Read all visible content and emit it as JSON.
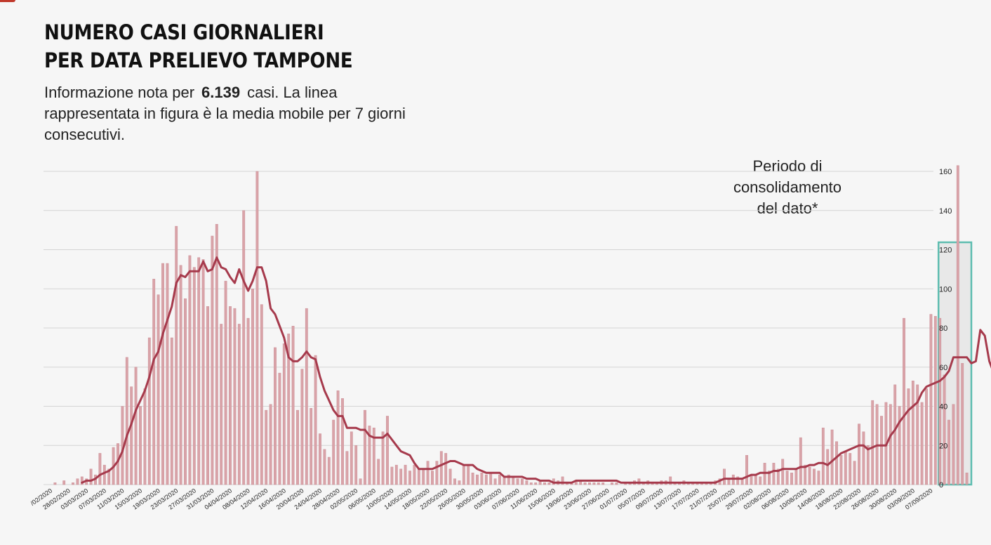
{
  "header": {
    "title_line1": "NUMERO CASI GIORNALIERI",
    "title_line2": "PER DATA PRELIEVO TAMPONE",
    "subtitle_before": "Informazione nota per",
    "subtitle_number": "6.139",
    "subtitle_after": "casi. La linea rappresentata in figura è la media mobile per 7 giorni consecutivi."
  },
  "annotation": {
    "line1": "Periodo di",
    "line2": "consolidamento",
    "line3": "del dato*"
  },
  "colors": {
    "bar": "#d9a3a8",
    "bar_edge": "#c98891",
    "line": "#a63a4c",
    "grid": "#d4d4d4",
    "highlight_border": "#5dbdb0",
    "highlight_fill": "#e8e8e8"
  },
  "chart_data": {
    "type": "bar",
    "start_date": "2020-02-24",
    "end_date": "2020-09-09",
    "ylim": [
      0,
      160
    ],
    "yticks": [
      0,
      20,
      40,
      60,
      80,
      100,
      120,
      140,
      160
    ],
    "y_axis_position": "right",
    "grid": true,
    "xtick_labels": [
      "/02/2020",
      "28/02/2020",
      "03/03/2020",
      "07/03/2020",
      "11/03/2020",
      "15/03/2020",
      "19/03/2020",
      "23/03/2020",
      "27/03/2020",
      "31/03/2020",
      "04/04/2020",
      "08/04/2020",
      "12/04/2020",
      "16/04/2020",
      "20/04/2020",
      "24/04/2020",
      "28/04/2020",
      "02/05/2020",
      "06/05/2020",
      "10/05/2020",
      "14/05/2020",
      "18/05/2020",
      "22/05/2020",
      "26/05/2020",
      "30/05/2020",
      "03/06/2020",
      "07/06/2020",
      "11/06/2020",
      "15/06/2020",
      "19/06/2020",
      "23/06/2020",
      "27/06/2020",
      "01/07/2020",
      "05/07/2020",
      "09/07/2020",
      "13/07/2020",
      "17/07/2020",
      "21/07/2020",
      "25/07/2020",
      "29/07/2020",
      "02/08/2020",
      "06/08/2020",
      "10/08/2020",
      "14/08/2020",
      "18/08/2020",
      "22/08/2020",
      "26/08/2020",
      "30/08/2020",
      "03/09/2020",
      "07/09/2020"
    ],
    "consolidation_period": [
      "2020-09-03",
      "2020-09-09"
    ],
    "series": [
      {
        "type": "bar",
        "values": [
          0,
          1,
          0,
          2,
          0,
          1,
          3,
          4,
          3,
          8,
          5,
          16,
          10,
          8,
          19,
          21,
          40,
          65,
          50,
          60,
          40,
          49,
          75,
          105,
          97,
          113,
          113,
          75,
          132,
          112,
          95,
          117,
          111,
          116,
          115,
          91,
          127,
          133,
          82,
          104,
          91,
          90,
          82,
          140,
          85,
          100,
          160,
          92,
          38,
          41,
          70,
          57,
          72,
          77,
          81,
          38,
          59,
          90,
          39,
          66,
          26,
          18,
          14,
          33,
          48,
          44,
          17,
          27,
          20,
          3,
          38,
          30,
          29,
          13,
          27,
          35,
          9,
          10,
          8,
          10,
          7,
          10,
          8,
          8,
          12,
          7,
          12,
          17,
          16,
          8,
          3,
          2,
          10,
          10,
          6,
          5,
          6,
          5,
          6,
          3,
          5,
          4,
          5,
          4,
          3,
          3,
          2,
          1,
          1,
          2,
          1,
          1,
          3,
          2,
          4,
          1,
          1,
          2,
          2,
          1,
          1,
          1,
          1,
          1,
          0,
          1,
          1,
          0,
          1,
          1,
          2,
          3,
          1,
          2,
          1,
          1,
          2,
          2,
          4,
          1,
          1,
          2,
          1,
          1,
          1,
          1,
          1,
          1,
          2,
          3,
          8,
          3,
          5,
          4,
          3,
          15,
          5,
          5,
          4,
          11,
          7,
          11,
          8,
          13,
          7,
          6,
          8,
          24,
          10,
          9,
          8,
          7,
          29,
          18,
          28,
          22,
          15,
          17,
          16,
          12,
          31,
          27,
          20,
          43,
          41,
          35,
          42,
          41,
          51,
          40,
          85,
          49,
          53,
          51,
          42,
          49,
          87,
          86,
          85,
          56,
          33,
          41,
          163,
          62,
          6
        ]
      },
      {
        "type": "line",
        "values": [
          null,
          null,
          null,
          null,
          null,
          null,
          null,
          1,
          2,
          2,
          3,
          5,
          6,
          7,
          9,
          12,
          17,
          25,
          31,
          38,
          43,
          48,
          55,
          64,
          68,
          77,
          84,
          91,
          103,
          107,
          106,
          109,
          109,
          109,
          114,
          109,
          110,
          116,
          111,
          110,
          106,
          103,
          110,
          104,
          99,
          104,
          111,
          111,
          104,
          90,
          87,
          81,
          75,
          65,
          63,
          63,
          65,
          68,
          65,
          64,
          55,
          48,
          43,
          38,
          35,
          35,
          29,
          29,
          29,
          28,
          28,
          25,
          24,
          24,
          24,
          26,
          23,
          20,
          17,
          16,
          15,
          11,
          8,
          8,
          8,
          8,
          9,
          10,
          11,
          12,
          12,
          11,
          10,
          10,
          10,
          8,
          7,
          6,
          6,
          6,
          6,
          4,
          4,
          4,
          4,
          4,
          3,
          3,
          3,
          2,
          2,
          2,
          1,
          1,
          1,
          1,
          1,
          2,
          2,
          2,
          2,
          2,
          2,
          2,
          2,
          2,
          2,
          1,
          1,
          1,
          1,
          1,
          1,
          1,
          1,
          1,
          1,
          1,
          1,
          1,
          1,
          1,
          1,
          1,
          1,
          1,
          1,
          1,
          1,
          2,
          3,
          3,
          3,
          3,
          3,
          4,
          5,
          5,
          6,
          6,
          6,
          7,
          7,
          8,
          8,
          8,
          8,
          9,
          9,
          10,
          10,
          11,
          11,
          10,
          12,
          14,
          16,
          17,
          18,
          19,
          20,
          20,
          18,
          19,
          20,
          20,
          20,
          25,
          28,
          32,
          35,
          38,
          40,
          42,
          47,
          50,
          51,
          52,
          53,
          55,
          58,
          65,
          65,
          65,
          65,
          62,
          63,
          79,
          76,
          63,
          57
        ]
      }
    ]
  }
}
